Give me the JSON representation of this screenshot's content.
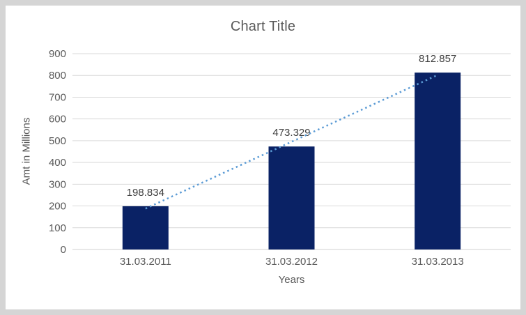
{
  "chart_data": {
    "type": "bar",
    "title": "Chart Title",
    "categories": [
      "31.03.2011",
      "31.03.2012",
      "31.03.2013"
    ],
    "values": [
      198.834,
      473.329,
      812.857
    ],
    "data_labels": [
      "198.834",
      "473.329",
      "812.857"
    ],
    "xlabel": "Years",
    "ylabel": "Amt in Millions",
    "ylim": [
      0,
      900
    ],
    "ytick_step": 100,
    "ytick_labels": [
      "0",
      "100",
      "200",
      "300",
      "400",
      "500",
      "600",
      "700",
      "800",
      "900"
    ],
    "grid": true,
    "legend_position": "none",
    "trendline": {
      "type": "linear",
      "style": "dotted"
    }
  },
  "colors": {
    "bar": "#0a2265",
    "trend": "#5b9bd5",
    "gridline": "#d9d9d9",
    "axis_line": "#d0d0d0",
    "axis_text": "#595959",
    "label_text": "#404040",
    "title_text": "#595959",
    "frame_bg": "#d5d5d5",
    "chart_bg": "#ffffff"
  }
}
